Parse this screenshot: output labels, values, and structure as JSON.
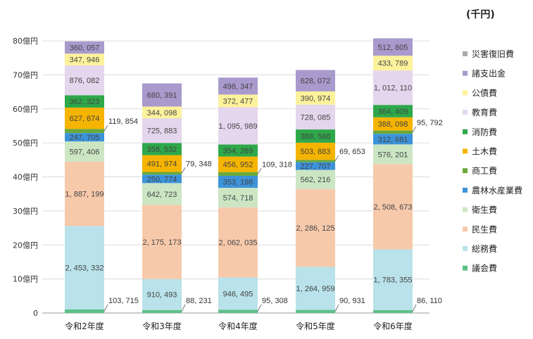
{
  "chart_data": {
    "type": "bar",
    "stacked": true,
    "unit_label": "(千円)",
    "categories": [
      "令和2年度",
      "令和3年度",
      "令和4年度",
      "令和5年度",
      "令和6年度"
    ],
    "ylim": [
      0,
      8000000
    ],
    "yticks": [
      0,
      1000000,
      2000000,
      3000000,
      4000000,
      5000000,
      6000000,
      7000000,
      8000000
    ],
    "ytick_labels": [
      "0",
      "10億円",
      "20億円",
      "30億円",
      "40億円",
      "50億円",
      "60億円",
      "70億円",
      "80億円"
    ],
    "grid": true,
    "legend_position": "right",
    "series": [
      {
        "name": "議会費",
        "color": "#5cc08a",
        "values": [
          103715,
          88231,
          95308,
          90931,
          86110
        ],
        "labels": [
          "103, 715",
          "88, 231",
          "95, 308",
          "90, 931",
          "86, 110"
        ],
        "callout": true
      },
      {
        "name": "総務費",
        "color": "#b9e2ea",
        "values": [
          2453332,
          910493,
          946495,
          1264959,
          1783355
        ],
        "labels": [
          "2, 453, 332",
          "910, 493",
          "946, 495",
          "1, 264, 959",
          "1, 783, 355"
        ]
      },
      {
        "name": "民生費",
        "color": "#f7c9ab",
        "values": [
          1887199,
          2175173,
          2062035,
          2286125,
          2508673
        ],
        "labels": [
          "1, 887, 199",
          "2, 175, 173",
          "2, 062, 035",
          "2, 286, 125",
          "2, 508, 673"
        ]
      },
      {
        "name": "衛生費",
        "color": "#cce6c4",
        "values": [
          597406,
          642723,
          574718,
          562216,
          576201
        ],
        "labels": [
          "597, 406",
          "642, 723",
          "574, 718",
          "562, 216",
          "576, 201"
        ]
      },
      {
        "name": "農林水産業費",
        "color": "#3d93da",
        "values": [
          247705,
          250774,
          353198,
          227707,
          312681
        ],
        "labels": [
          "247, 705",
          "250, 774",
          "353, 198",
          "227, 707",
          "312, 681"
        ]
      },
      {
        "name": "商工費",
        "color": "#6aa83a",
        "values": [
          119854,
          79348,
          109318,
          69653,
          95792
        ],
        "labels": [
          "119, 854",
          "79, 348",
          "109, 318",
          "69, 653",
          "95, 792"
        ],
        "callout": true
      },
      {
        "name": "土木費",
        "color": "#f5b400",
        "values": [
          627674,
          491974,
          456952,
          503883,
          388098
        ],
        "labels": [
          "627, 674",
          "491, 974",
          "456, 952",
          "503, 883",
          "388, 098"
        ]
      },
      {
        "name": "消防費",
        "color": "#2ea84a",
        "values": [
          362323,
          358532,
          354269,
          388568,
          364409
        ],
        "labels": [
          "362, 323",
          "358, 532",
          "354, 269",
          "388, 568",
          "364, 409"
        ]
      },
      {
        "name": "教育費",
        "color": "#e4d6ec",
        "values": [
          876082,
          725883,
          1095989,
          728085,
          1012110
        ],
        "labels": [
          "876, 082",
          "725, 883",
          "1, 095, 989",
          "728, 085",
          "1, 012, 110"
        ]
      },
      {
        "name": "公債費",
        "color": "#fdf29c",
        "values": [
          347946,
          344098,
          372477,
          390974,
          433789
        ],
        "labels": [
          "347, 946",
          "344, 098",
          "372, 477",
          "390, 974",
          "433, 789"
        ]
      },
      {
        "name": "諸支出金",
        "color": "#a99acd",
        "values": [
          360057,
          680391,
          498347,
          628072,
          512805
        ],
        "labels": [
          "360, 057",
          "680, 391",
          "498, 347",
          "628, 072",
          "512, 805"
        ]
      },
      {
        "name": "災害復旧費",
        "color": "#aaaaaa",
        "values": [
          0,
          0,
          0,
          0,
          0
        ],
        "labels": [
          "",
          "",
          "",
          "",
          ""
        ]
      }
    ]
  }
}
